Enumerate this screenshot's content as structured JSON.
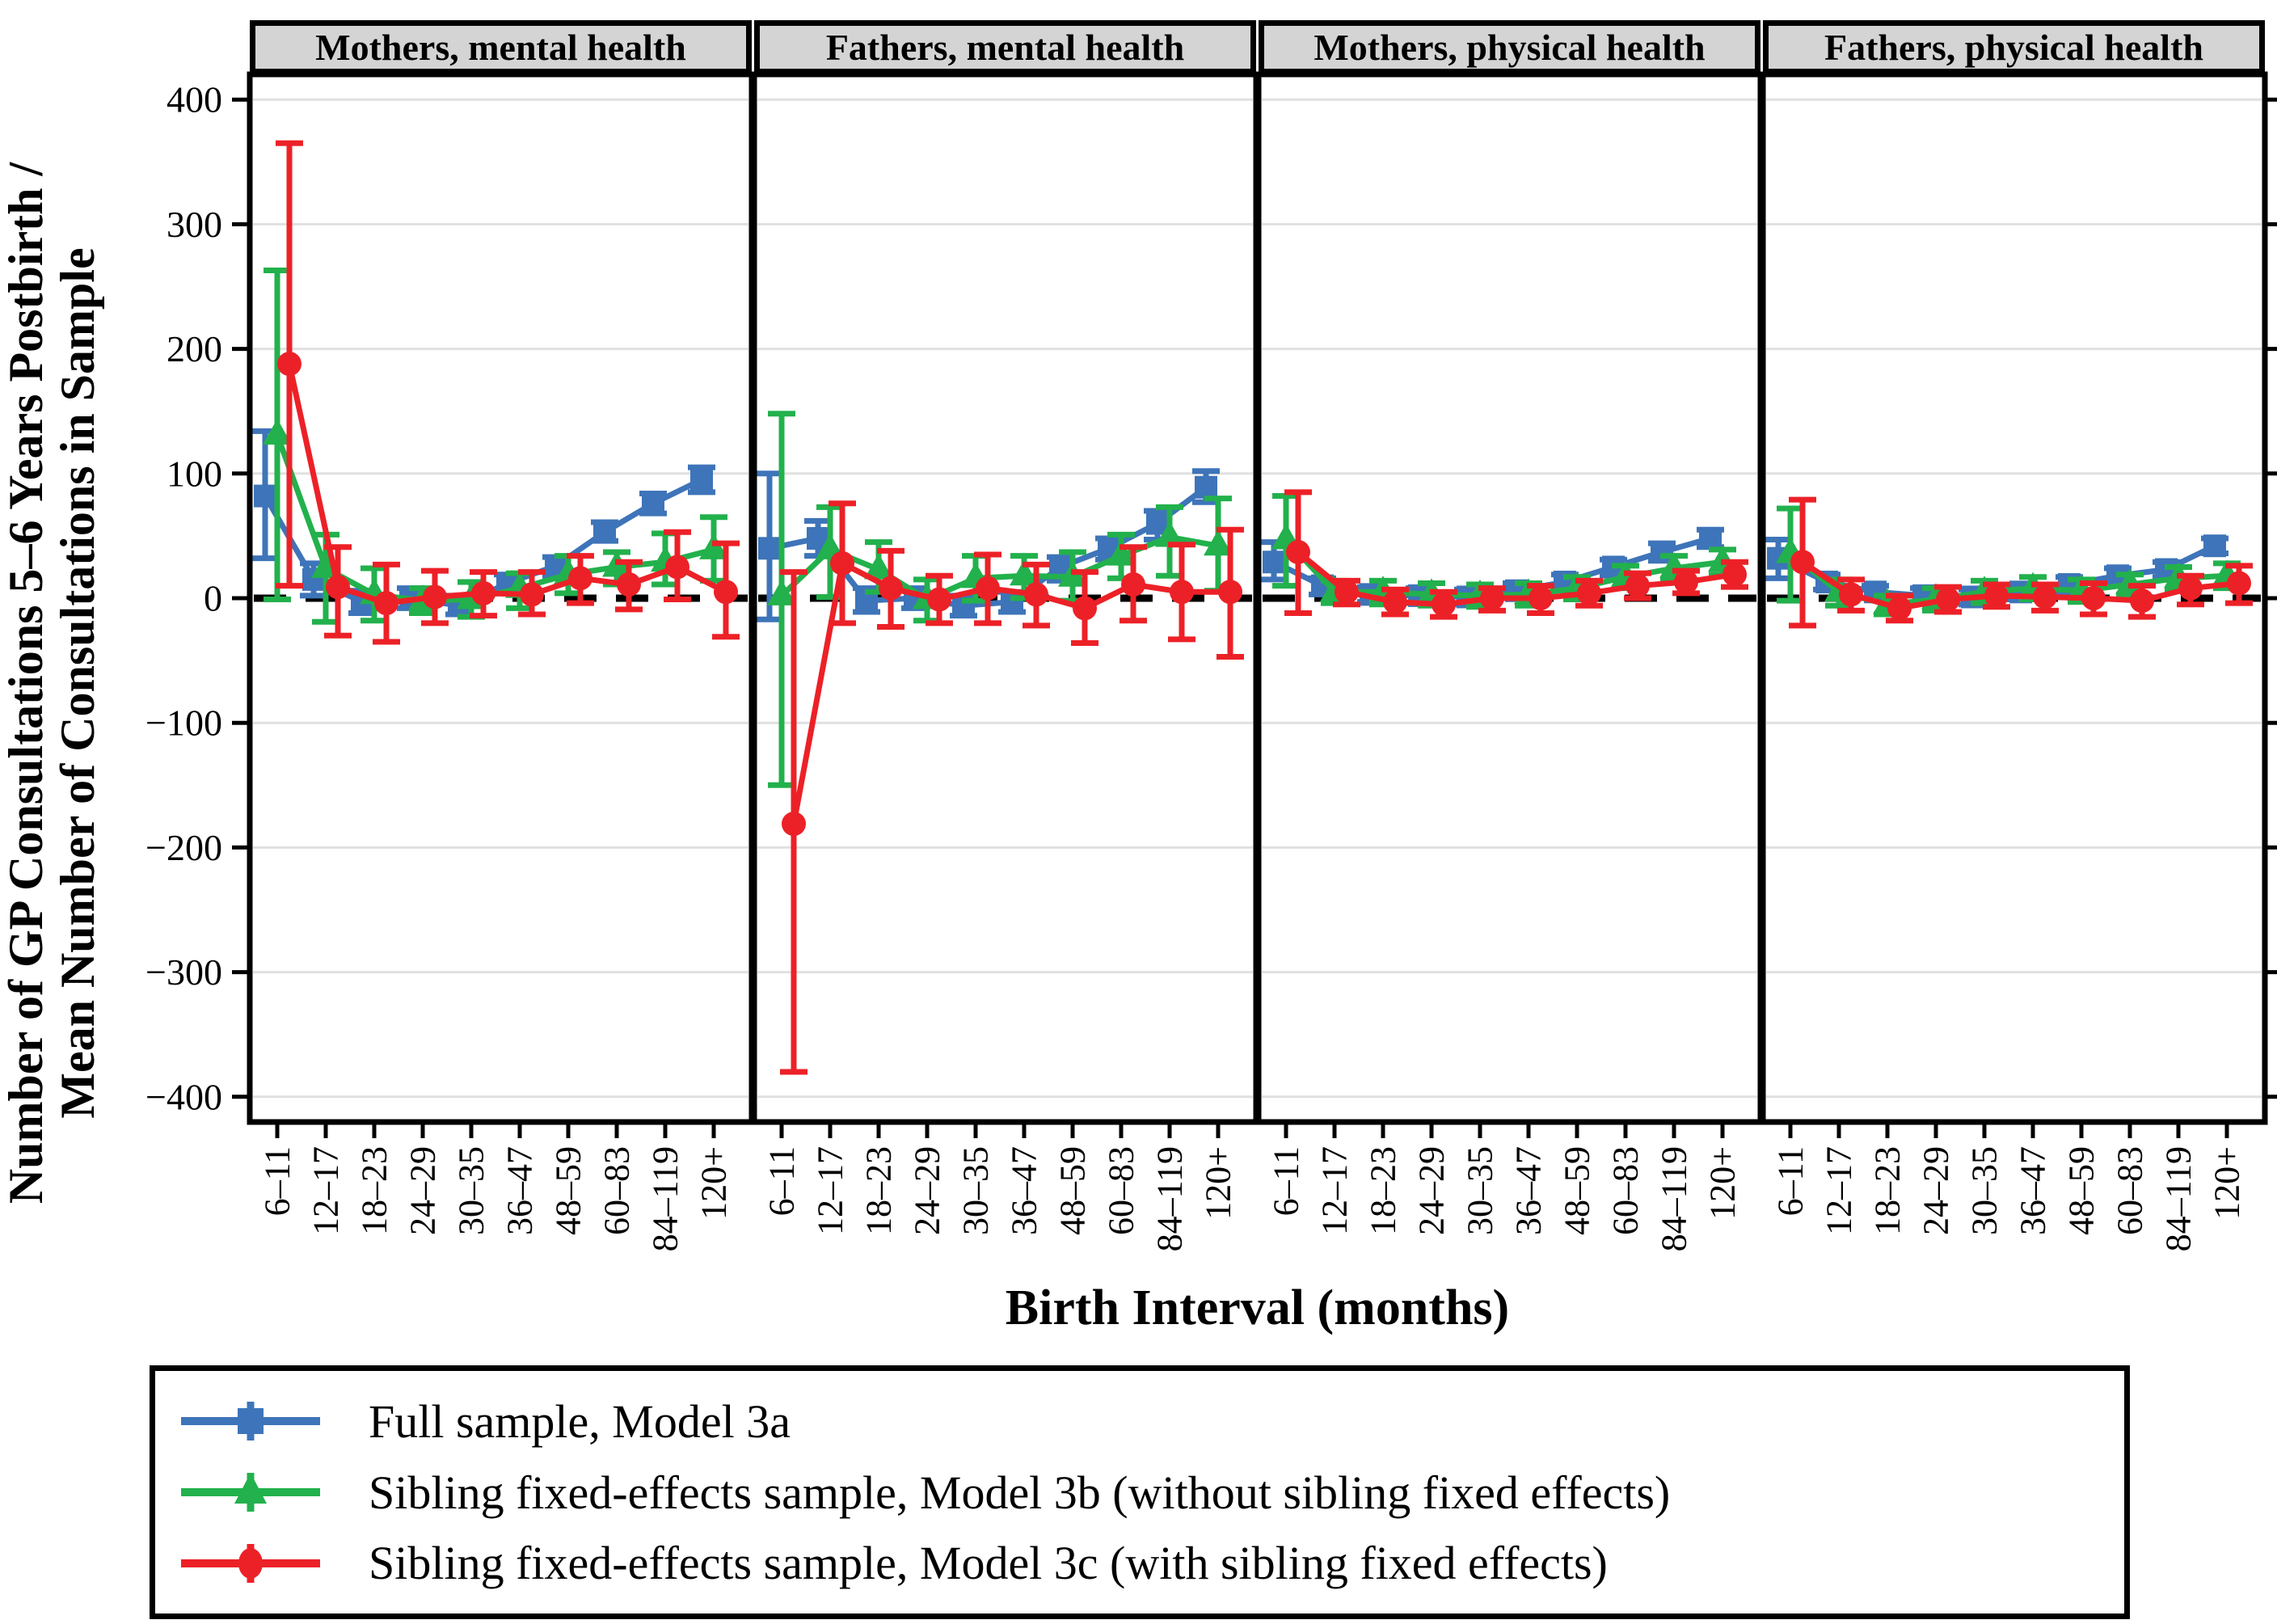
{
  "chart_data": {
    "type": "line",
    "x_title": "Birth Interval (months)",
    "y_title_line1": "Number of GP Consultations 5–6 Years Postbirth /",
    "y_title_line2": "Mean Number of Consultations in Sample",
    "categories": [
      "6–11",
      "12–17",
      "18–23",
      "24–29",
      "30–35",
      "36–47",
      "48–59",
      "60–83",
      "84–119",
      "120+"
    ],
    "yticks": [
      400,
      300,
      200,
      100,
      0,
      -100,
      -200,
      -300,
      -400
    ],
    "ylim": [
      -420,
      420
    ],
    "grid": "horizontal-light-gray",
    "zero_line": "black-dashed",
    "legend_position": "bottom-boxed",
    "colors": {
      "model_3a": "#3E74B9",
      "model_3b": "#22B14C",
      "model_3c": "#EC2127",
      "header_bg": "#D4D4D4",
      "gridline": "#E0E0E0",
      "border": "#000000"
    },
    "legend": [
      {
        "key": "model_3a",
        "label": "Full sample, Model 3a",
        "color": "#3E74B9",
        "marker": "square"
      },
      {
        "key": "model_3b",
        "label": "Sibling fixed-effects sample, Model 3b (without sibling fixed effects)",
        "color": "#22B14C",
        "marker": "triangle"
      },
      {
        "key": "model_3c",
        "label": "Sibling fixed-effects sample, Model 3c (with sibling fixed effects)",
        "color": "#EC2127",
        "marker": "circle"
      }
    ],
    "panels": [
      {
        "title": "Mothers, mental health",
        "series": {
          "model_3a": {
            "values": [
              82,
              15,
              -3,
              0,
              -6,
              12,
              26,
              53,
              76,
              95
            ],
            "lower": [
              32,
              2,
              -12,
              -8,
              -13,
              5,
              18,
              46,
              68,
              85
            ],
            "upper": [
              134,
              28,
              6,
              8,
              2,
              19,
              33,
              61,
              84,
              105
            ]
          },
          "model_3b": {
            "values": [
              131,
              24,
              3,
              -2,
              -1,
              8,
              19,
              25,
              29,
              39
            ],
            "lower": [
              -1,
              -19,
              -18,
              -12,
              -15,
              -8,
              4,
              11,
              11,
              14
            ],
            "upper": [
              263,
              51,
              24,
              8,
              13,
              20,
              34,
              37,
              52,
              65
            ]
          },
          "model_3c": {
            "values": [
              188,
              9,
              -4,
              1,
              4,
              3,
              16,
              11,
              25,
              5
            ],
            "lower": [
              10,
              -30,
              -35,
              -20,
              -14,
              -13,
              -4,
              -9,
              -1,
              -31
            ],
            "upper": [
              365,
              41,
              27,
              22,
              21,
              21,
              34,
              29,
              53,
              44
            ]
          }
        }
      },
      {
        "title": "Fathers, mental health",
        "series": {
          "model_3a": {
            "values": [
              40,
              48,
              -2,
              0,
              -6,
              -3,
              25,
              40,
              60,
              89
            ],
            "lower": [
              -17,
              34,
              -11,
              -8,
              -14,
              -11,
              14,
              31,
              47,
              77
            ],
            "upper": [
              100,
              62,
              8,
              8,
              2,
              5,
              33,
              48,
              70,
              102
            ]
          },
          "model_3b": {
            "values": [
              2,
              39,
              23,
              -1,
              16,
              18,
              17,
              34,
              49,
              42
            ],
            "lower": [
              -150,
              1,
              5,
              -18,
              -2,
              0,
              -2,
              16,
              18,
              6
            ],
            "upper": [
              148,
              73,
              45,
              15,
              34,
              34,
              37,
              51,
              73,
              80
            ]
          },
          "model_3c": {
            "values": [
              -181,
              28,
              8,
              -1,
              8,
              3,
              -8,
              11,
              5,
              5
            ],
            "lower": [
              -380,
              -20,
              -23,
              -20,
              -20,
              -22,
              -36,
              -18,
              -33,
              -47
            ],
            "upper": [
              21,
              76,
              38,
              18,
              35,
              27,
              21,
              41,
              43,
              55
            ]
          }
        }
      },
      {
        "title": "Mothers, physical health",
        "series": {
          "model_3a": {
            "values": [
              29,
              10,
              3,
              2,
              1,
              6,
              13,
              25,
              37,
              48
            ],
            "lower": [
              15,
              3,
              -3,
              -4,
              -5,
              0,
              7,
              18,
              30,
              41
            ],
            "upper": [
              45,
              16,
              9,
              8,
              7,
              12,
              19,
              31,
              44,
              55
            ]
          },
          "model_3b": {
            "values": [
              47,
              5,
              5,
              3,
              2,
              3,
              8,
              17,
              24,
              29
            ],
            "lower": [
              10,
              -4,
              -5,
              -6,
              -7,
              -6,
              -1,
              8,
              14,
              19
            ],
            "upper": [
              82,
              14,
              14,
              12,
              11,
              12,
              17,
              26,
              34,
              39
            ]
          },
          "model_3c": {
            "values": [
              37,
              5,
              -3,
              -5,
              0,
              0,
              4,
              10,
              13,
              19
            ],
            "lower": [
              -12,
              -5,
              -13,
              -15,
              -10,
              -12,
              -6,
              0,
              4,
              9
            ],
            "upper": [
              85,
              14,
              7,
              5,
              8,
              10,
              14,
              20,
              22,
              29
            ]
          }
        }
      },
      {
        "title": "Fathers, physical health",
        "series": {
          "model_3a": {
            "values": [
              32,
              13,
              5,
              2,
              1,
              5,
              11,
              18,
              23,
              42
            ],
            "lower": [
              16,
              7,
              0,
              -4,
              -5,
              -1,
              5,
              12,
              17,
              36
            ],
            "upper": [
              47,
              19,
              10,
              8,
              7,
              11,
              17,
              24,
              29,
              48
            ]
          },
          "model_3b": {
            "values": [
              36,
              5,
              -5,
              -1,
              5,
              8,
              6,
              11,
              16,
              18
            ],
            "lower": [
              -2,
              -6,
              -13,
              -10,
              -4,
              -1,
              -3,
              3,
              7,
              8
            ],
            "upper": [
              72,
              15,
              2,
              8,
              14,
              17,
              15,
              19,
              25,
              28
            ]
          },
          "model_3c": {
            "values": [
              29,
              3,
              -8,
              -1,
              2,
              1,
              0,
              -2,
              8,
              12
            ],
            "lower": [
              -22,
              -10,
              -18,
              -11,
              -7,
              -10,
              -13,
              -15,
              -5,
              -4
            ],
            "upper": [
              79,
              15,
              2,
              9,
              11,
              11,
              12,
              10,
              18,
              26
            ]
          }
        }
      }
    ]
  }
}
